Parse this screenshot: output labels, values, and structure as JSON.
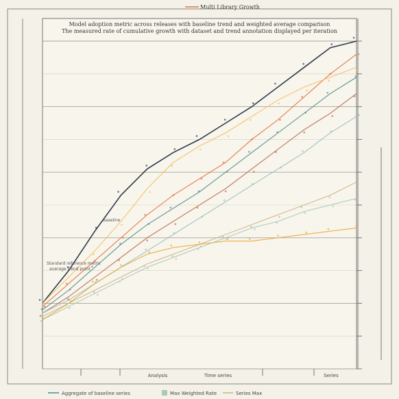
{
  "chart_data": {
    "type": "line",
    "title": "Multi Library Growth",
    "subtitle_lines": [
      "Model adoption metric across releases with baseline trend and weighted average comparison",
      "The measured rate of cumulative growth with dataset and trend annotation displayed per iteration"
    ],
    "x": [
      0,
      1,
      2,
      3,
      4,
      5,
      6,
      7,
      8,
      9,
      10,
      11,
      12
    ],
    "xlim": [
      0,
      12
    ],
    "ylim": [
      0,
      100
    ],
    "grid": true,
    "legend_position": "bottom",
    "bottom_labels": [
      "Analysis",
      "Time series",
      "Series"
    ],
    "legend": [
      "Aggregate of baseline series",
      "Max Weighted Rate",
      "Series Max"
    ],
    "annotations": [
      "Baseline",
      "Standard reference metric",
      "average trend point"
    ],
    "series": [
      {
        "color": "#2d3b4a",
        "values": [
          20,
          30,
          42,
          53,
          61,
          66,
          70,
          75,
          80,
          86,
          92,
          98,
          100
        ]
      },
      {
        "color": "#e2703a",
        "values": [
          19,
          26,
          33,
          40,
          47,
          53,
          58,
          63,
          70,
          76,
          83,
          90,
          96
        ]
      },
      {
        "color": "#f0c060",
        "values": [
          20,
          28,
          36,
          45,
          55,
          63,
          68,
          72,
          77,
          82,
          86,
          89,
          92
        ]
      },
      {
        "color": "#4e8b8a",
        "values": [
          18,
          24,
          31,
          38,
          44,
          49,
          54,
          60,
          66,
          72,
          78,
          84,
          89
        ]
      },
      {
        "color": "#b56a4a",
        "values": [
          17,
          22,
          28,
          34,
          40,
          45,
          50,
          55,
          61,
          67,
          73,
          78,
          84
        ]
      },
      {
        "color": "#9bbcc0",
        "values": [
          17,
          21,
          26,
          31,
          36,
          41,
          46,
          51,
          56,
          61,
          66,
          72,
          77
        ]
      },
      {
        "color": "#c9b38a",
        "values": [
          16,
          20,
          24,
          28,
          32,
          35,
          38,
          41,
          44,
          47,
          50,
          53,
          57
        ]
      },
      {
        "color": "#e8a830",
        "values": [
          15,
          20,
          26,
          31,
          35,
          37,
          38,
          39,
          39,
          40,
          41,
          42,
          43
        ]
      },
      {
        "color": "#a8c8b8",
        "values": [
          15,
          19,
          23,
          27,
          31,
          34,
          37,
          40,
          43,
          45,
          48,
          50,
          52
        ]
      }
    ]
  }
}
